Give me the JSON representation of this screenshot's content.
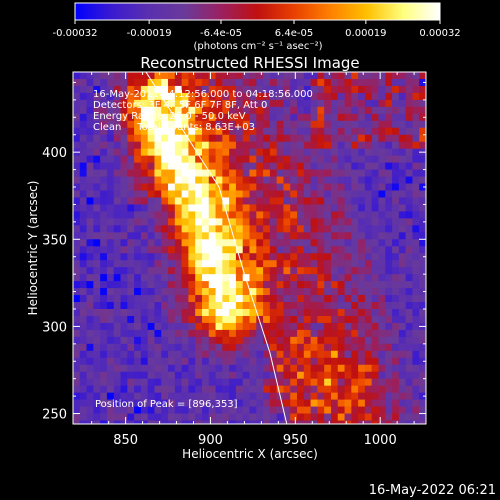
{
  "chart_data": {
    "type": "heatmap",
    "title": "Reconstructed RHESSI Image",
    "xlabel": "Heliocentric X (arcsec)",
    "ylabel": "Heliocentric Y (arcsec)",
    "xlim": [
      819,
      1027
    ],
    "ylim": [
      244,
      446
    ],
    "x_ticks": [
      850,
      900,
      950,
      1000
    ],
    "y_ticks": [
      250,
      300,
      350,
      400
    ],
    "colorbar": {
      "range": [
        -0.00032,
        0.00032
      ],
      "tick_values": [
        -0.00032,
        -0.00019,
        -6.4e-05,
        6.4e-05,
        0.00019,
        0.00032
      ],
      "tick_labels": [
        "-0.00032",
        "-0.00019",
        "-6.4e-05",
        "6.4e-05",
        "0.00019",
        "0.00032"
      ],
      "unit_label": "(photons cm⁻² s⁻¹ asec⁻²)",
      "colors": [
        "#0000ff",
        "#3a1ad0",
        "#5a2fb0",
        "#6a3a9a",
        "#9a2060",
        "#c01010",
        "#e84000",
        "#ff8000",
        "#ffc000",
        "#ffff80",
        "#ffffff"
      ]
    },
    "annotations": [
      "16-May-2011 04:12:56.000 to 04:18:56.000",
      "Detectors: 3F 4F 5F 6F 7F 8F, Att 0",
      "Energy Range: 26.0 - 50.0 keV",
      "Clean     Total Counts: 8.63E+03"
    ],
    "peak_label": "Position of Peak = [896,353]",
    "peak": [
      896,
      353
    ],
    "limb_line": [
      [
        862,
        446
      ],
      [
        905,
        380
      ],
      [
        920,
        330
      ],
      [
        935,
        285
      ],
      [
        945,
        244
      ]
    ],
    "bright_ridge": [
      [
        868,
        425
      ],
      [
        880,
        395
      ],
      [
        893,
        372
      ],
      [
        900,
        352
      ],
      [
        905,
        330
      ],
      [
        910,
        312
      ]
    ],
    "grid": false,
    "legend": "none"
  },
  "footer_timestamp": "16-May-2022 06:21"
}
